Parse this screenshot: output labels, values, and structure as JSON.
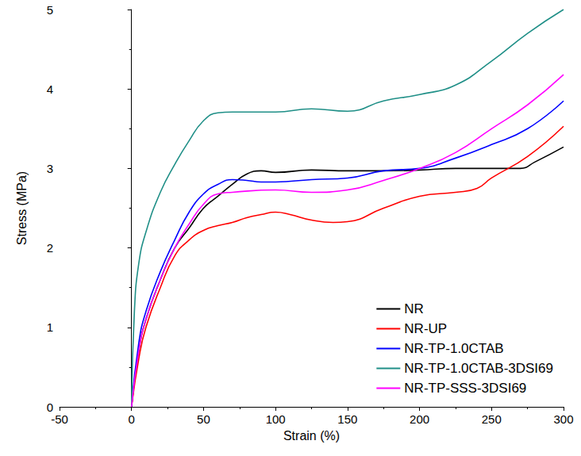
{
  "chart_data": {
    "type": "line",
    "x_label": "Strain (%)",
    "y_label": "Stress (MPa)",
    "xlim": [
      -50,
      300
    ],
    "xticks": [
      -50,
      0,
      50,
      100,
      150,
      200,
      250,
      300
    ],
    "ylim": [
      0,
      5
    ],
    "yticks": [
      0,
      1,
      2,
      3,
      4,
      5
    ],
    "grid": false,
    "legend": "lower right",
    "series": [
      {
        "name": "NR",
        "color": "#000000",
        "x": [
          0,
          5,
          10,
          20,
          30,
          40,
          50,
          60,
          70,
          80,
          90,
          100,
          125,
          150,
          175,
          200,
          225,
          250,
          270,
          280,
          300
        ],
        "values": [
          0,
          0.7,
          1.1,
          1.6,
          2.0,
          2.25,
          2.5,
          2.65,
          2.8,
          2.93,
          2.97,
          2.95,
          2.98,
          2.97,
          2.97,
          2.98,
          3.0,
          3.0,
          3.0,
          3.08,
          3.27
        ]
      },
      {
        "name": "NR-UP",
        "color": "#ff0000",
        "x": [
          0,
          5,
          10,
          20,
          30,
          40,
          50,
          60,
          70,
          80,
          90,
          100,
          110,
          125,
          140,
          150,
          175,
          200,
          225,
          240,
          250,
          275,
          300
        ],
        "values": [
          0,
          0.6,
          1.0,
          1.5,
          1.9,
          2.1,
          2.22,
          2.28,
          2.32,
          2.38,
          2.42,
          2.45,
          2.42,
          2.35,
          2.32,
          2.33,
          2.5,
          2.65,
          2.7,
          2.75,
          2.88,
          3.15,
          3.53
        ]
      },
      {
        "name": "NR-TP-1.0CTAB",
        "color": "#0000ff",
        "x": [
          0,
          5,
          10,
          20,
          30,
          40,
          50,
          60,
          70,
          80,
          90,
          100,
          125,
          150,
          175,
          200,
          225,
          250,
          275,
          300
        ],
        "values": [
          0,
          0.8,
          1.2,
          1.7,
          2.1,
          2.45,
          2.68,
          2.8,
          2.86,
          2.85,
          2.83,
          2.83,
          2.86,
          2.88,
          2.97,
          3.0,
          3.13,
          3.3,
          3.5,
          3.85
        ]
      },
      {
        "name": "NR-TP-1.0CTAB-3DSI69",
        "color": "#1f8f87",
        "x": [
          0,
          2,
          5,
          10,
          20,
          30,
          40,
          50,
          60,
          70,
          100,
          125,
          150,
          175,
          200,
          225,
          250,
          275,
          300
        ],
        "values": [
          0,
          1.2,
          1.8,
          2.2,
          2.7,
          3.05,
          3.35,
          3.6,
          3.7,
          3.71,
          3.71,
          3.75,
          3.72,
          3.85,
          3.93,
          4.05,
          4.35,
          4.7,
          5.0
        ]
      },
      {
        "name": "NR-TP-SSS-3DSI69",
        "color": "#ff00ff",
        "x": [
          0,
          5,
          10,
          20,
          30,
          40,
          50,
          60,
          70,
          100,
          125,
          150,
          175,
          200,
          225,
          250,
          275,
          300
        ],
        "values": [
          0,
          0.7,
          1.1,
          1.6,
          2.0,
          2.3,
          2.55,
          2.68,
          2.7,
          2.73,
          2.7,
          2.73,
          2.85,
          3.0,
          3.2,
          3.5,
          3.8,
          4.18
        ]
      }
    ]
  }
}
